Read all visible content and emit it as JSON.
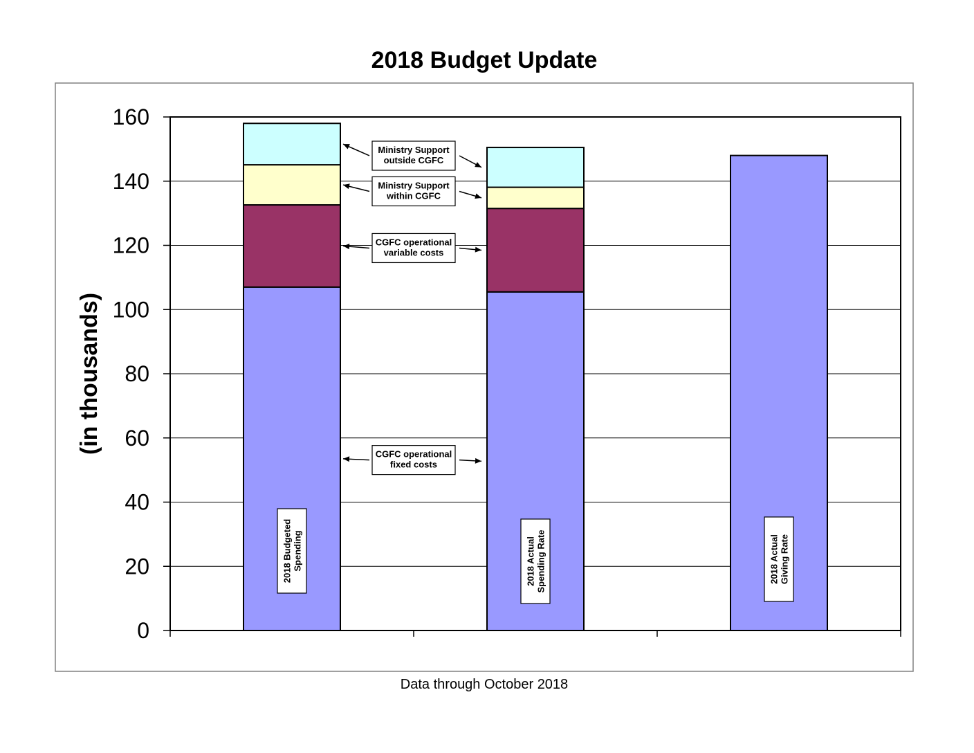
{
  "chart_data": {
    "type": "bar",
    "stacked": true,
    "title": "2018 Budget Update",
    "ylabel": "(in thousands)",
    "xlabel": "",
    "note": "Data through October 2018",
    "ylim": [
      0,
      160
    ],
    "yticks": [
      0,
      20,
      40,
      60,
      80,
      100,
      120,
      140,
      160
    ],
    "grid": true,
    "legend": "none",
    "bar_labels": [
      [
        "2018  Budgeted",
        "Spending"
      ],
      [
        "2018 Actual",
        "Spending Rate"
      ],
      [
        "2018 Actual",
        "Giving Rate"
      ]
    ],
    "series": [
      {
        "label": [
          "CGFC operational",
          "fixed costs"
        ],
        "color": "#9999ff",
        "values": [
          107,
          105.5,
          148
        ]
      },
      {
        "label": [
          "CGFC operational",
          "variable costs"
        ],
        "color": "#993366",
        "values": [
          25.6,
          26,
          0
        ]
      },
      {
        "label": [
          "Ministry Support",
          "within  CGFC"
        ],
        "color": "#ffffcc",
        "values": [
          12.5,
          6.6,
          0
        ]
      },
      {
        "label": [
          "Ministry Support",
          "outside CGFC"
        ],
        "color": "#ccffff",
        "values": [
          12.9,
          12.4,
          0
        ]
      }
    ]
  }
}
